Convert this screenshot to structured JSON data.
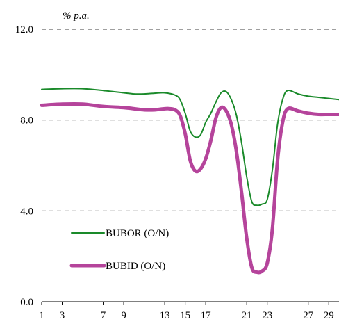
{
  "chart_data": {
    "type": "line",
    "unit_label": "% p.a.",
    "xlabel": "",
    "ylabel": "",
    "title": "",
    "xlim": [
      1,
      30
    ],
    "ylim": [
      0,
      12
    ],
    "x_ticks": [
      1,
      3,
      7,
      9,
      13,
      15,
      17,
      21,
      23,
      27,
      29
    ],
    "y_ticks": [
      "0.0",
      "4.0",
      "8.0",
      "12.0"
    ],
    "grid": "horizontal-dashed",
    "legend_placement": "bottom-left",
    "series": [
      {
        "name": "BUBOR (O/N)",
        "color": "#1a8a2a",
        "x": [
          1,
          3,
          5,
          7,
          9,
          10,
          11,
          12,
          13,
          14,
          14.5,
          15,
          15.5,
          16,
          16.5,
          17,
          17.5,
          18,
          18.5,
          19,
          19.5,
          20,
          20.5,
          21,
          21.5,
          22,
          22.5,
          23,
          23.5,
          24,
          24.5,
          25,
          26,
          27,
          28,
          29,
          30
        ],
        "y": [
          9.35,
          9.38,
          9.38,
          9.3,
          9.2,
          9.15,
          9.15,
          9.18,
          9.2,
          9.1,
          8.9,
          8.3,
          7.5,
          7.25,
          7.35,
          7.9,
          8.3,
          8.8,
          9.2,
          9.25,
          8.9,
          8.2,
          7.0,
          5.5,
          4.4,
          4.25,
          4.3,
          4.5,
          5.8,
          7.8,
          8.9,
          9.3,
          9.15,
          9.05,
          9.0,
          8.95,
          8.9
        ]
      },
      {
        "name": "BUBID (O/N)",
        "color": "#b5449b",
        "x": [
          1,
          3,
          5,
          7,
          9,
          10,
          11,
          12,
          13,
          13.5,
          14,
          14.5,
          15,
          15.5,
          16,
          16.5,
          17,
          17.5,
          18,
          18.5,
          19,
          19.5,
          20,
          20.5,
          21,
          21.5,
          22,
          22.5,
          23,
          23.5,
          24,
          24.5,
          25,
          26,
          27,
          28,
          29,
          30
        ],
        "y": [
          8.65,
          8.7,
          8.7,
          8.6,
          8.55,
          8.5,
          8.45,
          8.45,
          8.5,
          8.5,
          8.45,
          8.2,
          7.4,
          6.2,
          5.75,
          5.85,
          6.3,
          7.1,
          8.1,
          8.55,
          8.4,
          7.8,
          6.6,
          4.8,
          2.8,
          1.5,
          1.3,
          1.35,
          1.7,
          3.2,
          6.2,
          7.9,
          8.5,
          8.4,
          8.3,
          8.25,
          8.25,
          8.25
        ]
      }
    ]
  }
}
